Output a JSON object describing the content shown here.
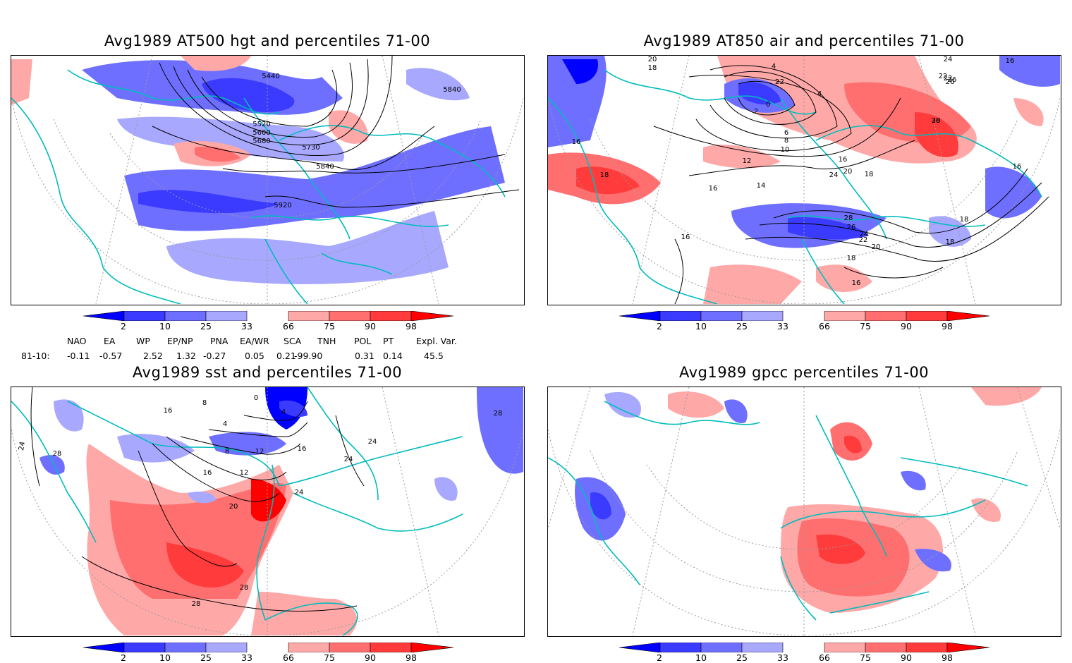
{
  "panels": [
    {
      "title": "Avg1989 AT500 hgt and percentiles 71-00",
      "contour_labels": [
        "5440",
        "5840",
        "5520",
        "5600",
        "5680",
        "5730",
        "5840",
        "5920"
      ]
    },
    {
      "title": "Avg1989 AT850 air and percentiles 71-00",
      "contour_labels": [
        "20",
        "18",
        "4",
        "2",
        "0",
        "-2",
        "2",
        "4",
        "6",
        "8",
        "10",
        "12",
        "14",
        "16",
        "16",
        "18",
        "20",
        "22",
        "24",
        "26",
        "28",
        "30",
        "18",
        "16",
        "16",
        "16",
        "16",
        "18",
        "18",
        "20",
        "22",
        "24",
        "26",
        "28",
        "22",
        "24",
        "26",
        "16",
        "18"
      ]
    },
    {
      "title": "Avg1989 sst and percentiles 71-00",
      "contour_labels": [
        "24",
        "28",
        "16",
        "12",
        "8",
        "4",
        "0",
        "4",
        "8",
        "12",
        "16",
        "20",
        "24",
        "28",
        "24",
        "24",
        "16",
        "28",
        "28"
      ]
    },
    {
      "title": "Avg1989 gpcc percentiles 71-00",
      "contour_labels": []
    }
  ],
  "colorbar": {
    "labels": [
      "2",
      "10",
      "25",
      "33",
      "66",
      "75",
      "90",
      "98"
    ],
    "colors": {
      "c2": "#0000ff",
      "c10": "#3b3bff",
      "c25": "#6f6fff",
      "c33": "#a8a8ff",
      "c66": "#ffa8a8",
      "c75": "#ff6f6f",
      "c90": "#ff3b3b",
      "c98": "#ff0000"
    }
  },
  "indices": {
    "headers": [
      "NAO",
      "EA",
      "WP",
      "EP/NP",
      "PNA",
      "EA/WR",
      "SCA",
      "TNH",
      "POL",
      "PT",
      "Expl. Var."
    ],
    "row_label": "81-10:",
    "values": [
      "-0.11",
      "-0.57",
      "2.52",
      "1.32",
      "-0.27",
      "0.05",
      "0.21",
      "-99.90",
      "0.31",
      "0.14",
      "45.5"
    ]
  },
  "map_colors": {
    "coast": "#00bcbc",
    "grid": "#9a9a9a",
    "contour": "#000000"
  }
}
